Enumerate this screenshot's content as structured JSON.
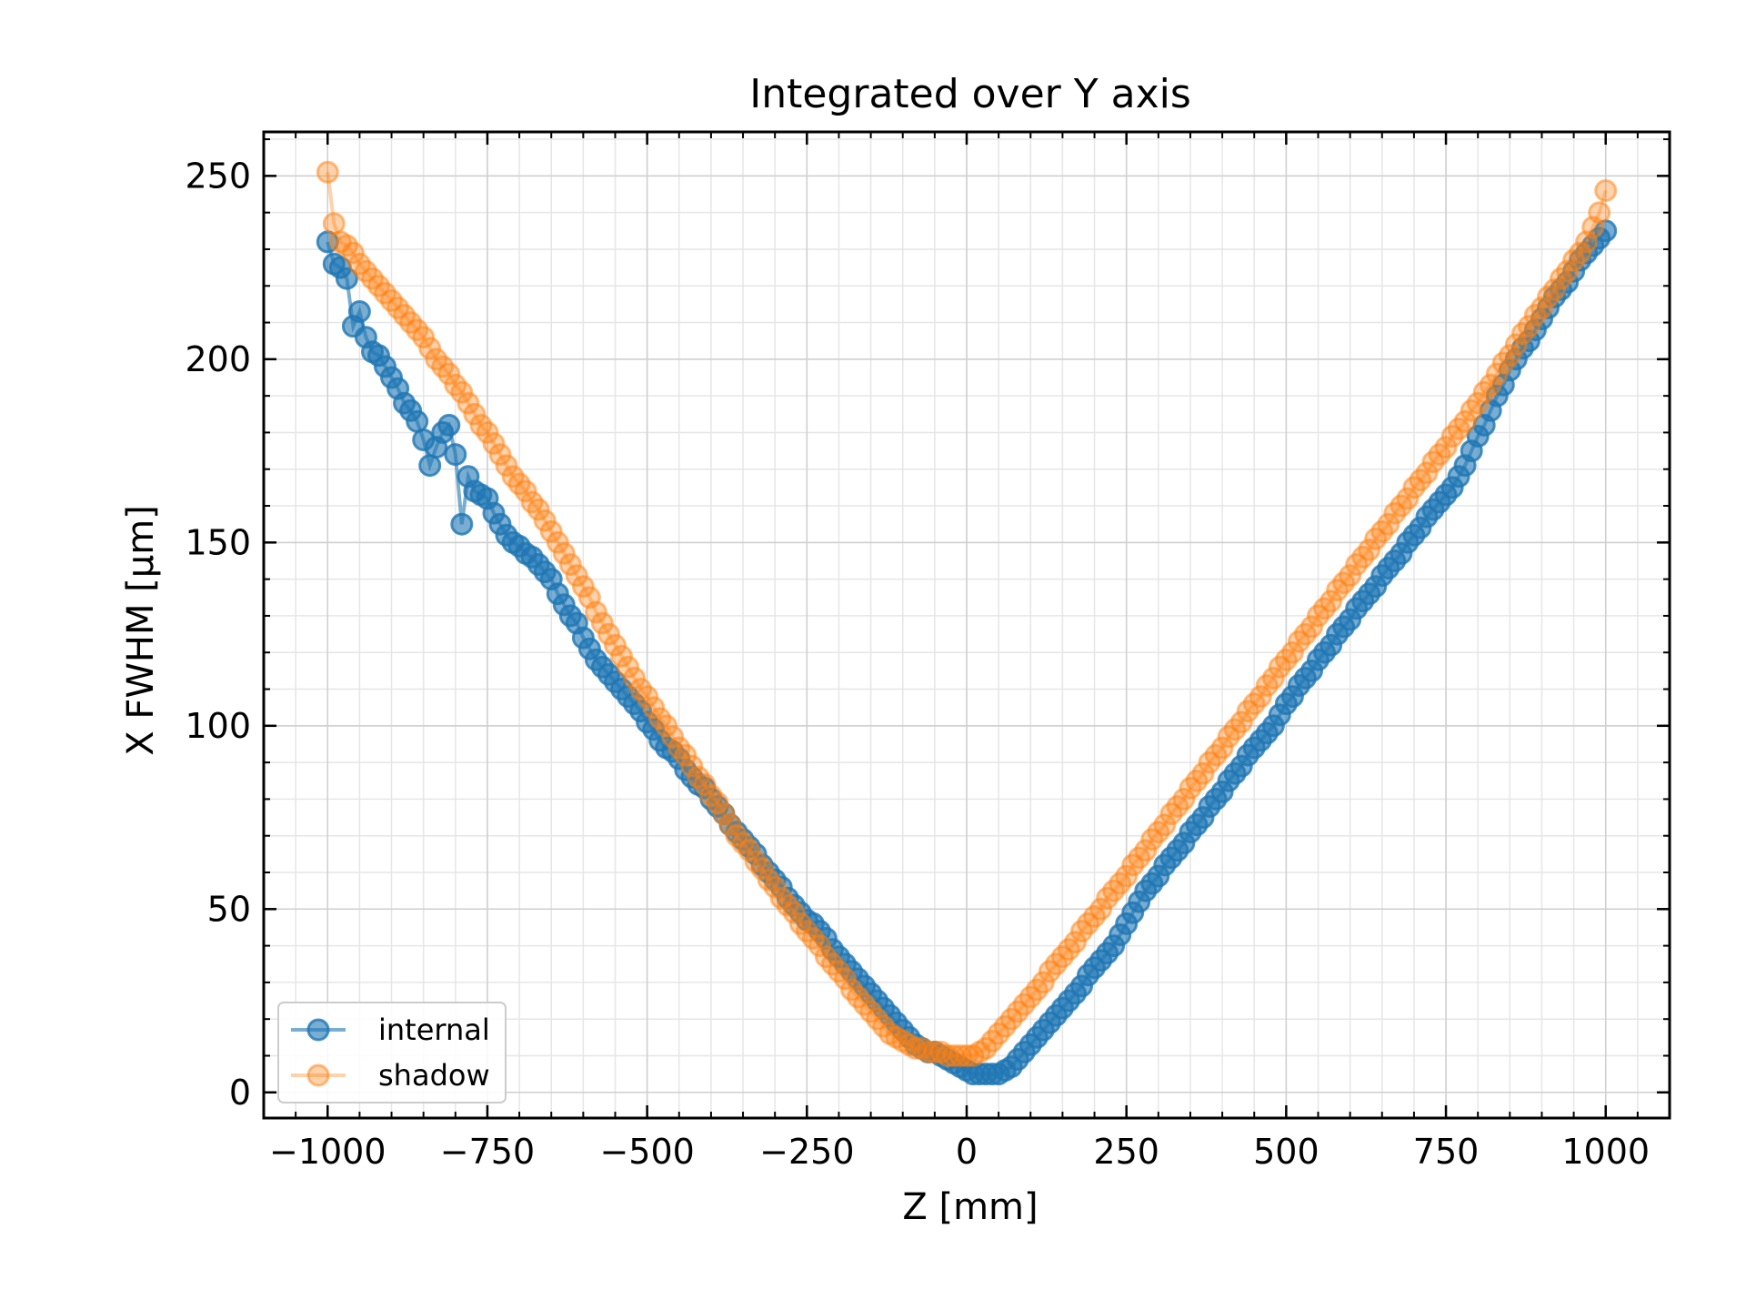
{
  "chart_data": {
    "type": "scatter",
    "title": "Integrated over Y axis",
    "xlabel": "Z [mm]",
    "ylabel": "X FWHM [µm]",
    "xlim": [
      -1100,
      1100
    ],
    "ylim": [
      -7,
      262
    ],
    "xticks": [
      -1000,
      -750,
      -500,
      -250,
      0,
      250,
      500,
      750,
      1000
    ],
    "xtick_labels": [
      "−1000",
      "−750",
      "−500",
      "−250",
      "0",
      "250",
      "500",
      "750",
      "1000"
    ],
    "yticks": [
      0,
      50,
      100,
      150,
      200,
      250
    ],
    "ytick_labels": [
      "0",
      "50",
      "100",
      "150",
      "200",
      "250"
    ],
    "grid": true,
    "legend_position": "lower-left",
    "series": [
      {
        "name": "internal",
        "color": "#1f77b4",
        "x": [
          -1000,
          -990,
          -980,
          -970,
          -960,
          -950,
          -940,
          -930,
          -920,
          -910,
          -900,
          -890,
          -880,
          -870,
          -860,
          -850,
          -840,
          -830,
          -820,
          -810,
          -800,
          -790,
          -780,
          -770,
          -760,
          -750,
          -740,
          -730,
          -720,
          -710,
          -700,
          -690,
          -680,
          -670,
          -660,
          -650,
          -640,
          -630,
          -620,
          -610,
          -600,
          -590,
          -580,
          -570,
          -560,
          -550,
          -540,
          -530,
          -520,
          -510,
          -500,
          -490,
          -480,
          -470,
          -460,
          -450,
          -440,
          -430,
          -420,
          -410,
          -400,
          -390,
          -380,
          -370,
          -360,
          -350,
          -340,
          -330,
          -320,
          -310,
          -300,
          -290,
          -280,
          -270,
          -260,
          -250,
          -240,
          -230,
          -220,
          -210,
          -200,
          -190,
          -180,
          -170,
          -160,
          -150,
          -140,
          -130,
          -120,
          -110,
          -100,
          -90,
          -80,
          -70,
          -60,
          -50,
          -40,
          -30,
          -20,
          -10,
          0,
          10,
          20,
          30,
          40,
          50,
          60,
          70,
          80,
          90,
          100,
          110,
          120,
          130,
          140,
          150,
          160,
          170,
          180,
          190,
          200,
          210,
          220,
          230,
          240,
          250,
          260,
          270,
          280,
          290,
          300,
          310,
          320,
          330,
          340,
          350,
          360,
          370,
          380,
          390,
          400,
          410,
          420,
          430,
          440,
          450,
          460,
          470,
          480,
          490,
          500,
          510,
          520,
          530,
          540,
          550,
          560,
          570,
          580,
          590,
          600,
          610,
          620,
          630,
          640,
          650,
          660,
          670,
          680,
          690,
          700,
          710,
          720,
          730,
          740,
          750,
          760,
          770,
          780,
          790,
          800,
          810,
          820,
          830,
          840,
          850,
          860,
          870,
          880,
          890,
          900,
          910,
          920,
          930,
          940,
          950,
          960,
          970,
          980,
          990,
          1000
        ],
        "y": [
          232,
          226,
          225,
          222,
          209,
          213,
          206,
          202,
          201,
          198,
          195,
          192,
          188,
          186,
          183,
          178,
          171,
          176,
          180,
          182,
          174,
          155,
          168,
          164,
          163,
          162,
          158,
          155,
          152,
          150,
          149,
          147,
          146,
          144,
          142,
          140,
          136,
          133,
          130,
          128,
          124,
          121,
          118,
          116,
          114,
          112,
          110,
          108,
          106,
          104,
          101,
          99,
          96,
          94,
          93,
          91,
          88,
          86,
          84,
          83,
          80,
          78,
          76,
          73,
          71,
          69,
          67,
          65,
          62,
          60,
          58,
          56,
          53,
          51,
          49,
          47,
          46,
          44,
          42,
          39,
          37,
          35,
          33,
          31,
          29,
          27,
          25,
          23,
          21,
          19,
          17,
          15,
          13,
          12,
          11,
          11,
          10,
          9,
          8,
          7,
          6,
          5,
          5,
          5,
          5,
          5,
          6,
          7,
          9,
          11,
          13,
          15,
          17,
          19,
          21,
          23,
          25,
          27,
          29,
          32,
          34,
          36,
          38,
          40,
          43,
          46,
          49,
          52,
          55,
          57,
          59,
          62,
          64,
          66,
          68,
          71,
          73,
          75,
          78,
          80,
          82,
          85,
          87,
          89,
          92,
          94,
          96,
          98,
          100,
          103,
          106,
          108,
          111,
          113,
          115,
          118,
          120,
          122,
          125,
          127,
          129,
          132,
          134,
          136,
          138,
          141,
          143,
          145,
          147,
          150,
          152,
          154,
          157,
          159,
          161,
          163,
          165,
          168,
          171,
          175,
          179,
          182,
          186,
          190,
          193,
          197,
          200,
          203,
          205,
          208,
          211,
          214,
          217,
          219,
          221,
          224,
          227,
          229,
          231,
          233,
          235
        ]
      },
      {
        "name": "shadow",
        "color": "#ff7f0e",
        "x": [
          -1000,
          -990,
          -980,
          -970,
          -960,
          -950,
          -940,
          -930,
          -920,
          -910,
          -900,
          -890,
          -880,
          -870,
          -860,
          -850,
          -840,
          -830,
          -820,
          -810,
          -800,
          -790,
          -780,
          -770,
          -760,
          -750,
          -740,
          -730,
          -720,
          -710,
          -700,
          -690,
          -680,
          -670,
          -660,
          -650,
          -640,
          -630,
          -620,
          -610,
          -600,
          -590,
          -580,
          -570,
          -560,
          -550,
          -540,
          -530,
          -520,
          -510,
          -500,
          -490,
          -480,
          -470,
          -460,
          -450,
          -440,
          -430,
          -420,
          -410,
          -400,
          -390,
          -380,
          -370,
          -360,
          -350,
          -340,
          -330,
          -320,
          -310,
          -300,
          -290,
          -280,
          -270,
          -260,
          -250,
          -240,
          -230,
          -220,
          -210,
          -200,
          -190,
          -180,
          -170,
          -160,
          -150,
          -140,
          -130,
          -120,
          -110,
          -100,
          -90,
          -80,
          -70,
          -60,
          -50,
          -40,
          -30,
          -20,
          -10,
          0,
          10,
          20,
          30,
          40,
          50,
          60,
          70,
          80,
          90,
          100,
          110,
          120,
          130,
          140,
          150,
          160,
          170,
          180,
          190,
          200,
          210,
          220,
          230,
          240,
          250,
          260,
          270,
          280,
          290,
          300,
          310,
          320,
          330,
          340,
          350,
          360,
          370,
          380,
          390,
          400,
          410,
          420,
          430,
          440,
          450,
          460,
          470,
          480,
          490,
          500,
          510,
          520,
          530,
          540,
          550,
          560,
          570,
          580,
          590,
          600,
          610,
          620,
          630,
          640,
          650,
          660,
          670,
          680,
          690,
          700,
          710,
          720,
          730,
          740,
          750,
          760,
          770,
          780,
          790,
          800,
          810,
          820,
          830,
          840,
          850,
          860,
          870,
          880,
          890,
          900,
          910,
          920,
          930,
          940,
          950,
          960,
          970,
          980,
          990,
          1000
        ],
        "y": [
          251,
          237,
          232,
          231,
          229,
          226,
          224,
          222,
          220,
          218,
          216,
          214,
          212,
          210,
          208,
          206,
          203,
          200,
          198,
          196,
          193,
          191,
          188,
          185,
          182,
          180,
          177,
          174,
          171,
          168,
          166,
          164,
          161,
          159,
          156,
          153,
          150,
          147,
          144,
          141,
          138,
          135,
          131,
          128,
          125,
          122,
          119,
          116,
          113,
          110,
          108,
          105,
          102,
          100,
          97,
          94,
          92,
          89,
          86,
          84,
          81,
          79,
          76,
          73,
          70,
          68,
          66,
          63,
          61,
          58,
          56,
          53,
          51,
          49,
          46,
          44,
          42,
          40,
          37,
          35,
          33,
          31,
          28,
          26,
          24,
          22,
          20,
          18,
          16,
          15,
          14,
          13,
          12,
          12,
          11,
          11,
          11,
          10,
          10,
          10,
          10,
          10,
          11,
          12,
          14,
          16,
          18,
          20,
          22,
          24,
          26,
          28,
          30,
          33,
          35,
          37,
          39,
          41,
          44,
          46,
          48,
          50,
          53,
          55,
          57,
          59,
          62,
          64,
          66,
          69,
          71,
          73,
          76,
          78,
          80,
          83,
          85,
          87,
          90,
          92,
          94,
          97,
          99,
          101,
          104,
          106,
          108,
          111,
          113,
          116,
          118,
          120,
          123,
          125,
          127,
          130,
          132,
          134,
          137,
          139,
          141,
          144,
          146,
          148,
          151,
          153,
          155,
          158,
          160,
          162,
          165,
          167,
          169,
          172,
          174,
          176,
          179,
          181,
          183,
          186,
          188,
          191,
          193,
          196,
          199,
          201,
          204,
          207,
          209,
          212,
          214,
          217,
          219,
          222,
          224,
          227,
          229,
          232,
          236,
          240,
          246
        ]
      }
    ]
  }
}
